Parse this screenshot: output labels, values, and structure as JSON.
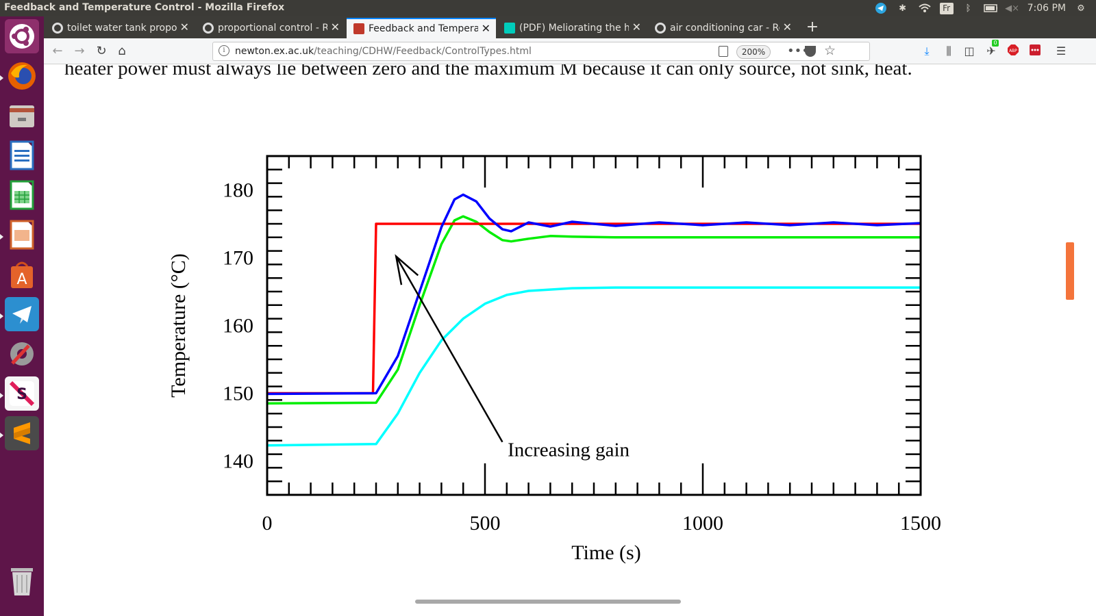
{
  "window": {
    "title": "Feedback and Temperature Control - Mozilla Firefox",
    "clock": "7:06 PM",
    "keyboard_layout": "Fr"
  },
  "tabs": [
    {
      "label": "toilet water tank propor",
      "favicon": "google-icon"
    },
    {
      "label": "proportional control - R",
      "favicon": "google-icon"
    },
    {
      "label": "Feedback and Temperat",
      "favicon": "exeter-crest-icon",
      "active": true
    },
    {
      "label": "(PDF) Meliorating the h",
      "favicon": "researchgate-icon"
    },
    {
      "label": "air conditioning car - Re",
      "favicon": "google-icon"
    }
  ],
  "address_bar": {
    "url_host": "newton.ex.ac.uk",
    "url_path": "/teaching/CDHW/Feedback/ControlTypes.html",
    "zoom": "200%"
  },
  "addon_badge": "0",
  "page": {
    "top_text": "heater power must always lie between zero and the maximum M because it can only source, not sink, heat."
  },
  "chart_data": {
    "type": "line",
    "xlabel": "Time (s)",
    "ylabel": "Temperature (°C)",
    "xlim": [
      0,
      1500
    ],
    "ylim": [
      135,
      185
    ],
    "x_ticks": [
      0,
      500,
      1000,
      1500
    ],
    "y_ticks": [
      140,
      150,
      160,
      170,
      180
    ],
    "annotation": "Increasing gain",
    "colors": {
      "setpoint": "#ff0000",
      "high_gain": "#0000ff",
      "mid_gain": "#00ee00",
      "low_gain": "#00ffff"
    },
    "series": [
      {
        "color": "#ff0000",
        "x": [
          0,
          243,
          250,
          1500
        ],
        "y": [
          150,
          150,
          175,
          175
        ]
      },
      {
        "color": "#0000ff",
        "x": [
          0,
          250,
          300,
          350,
          400,
          430,
          450,
          480,
          510,
          540,
          560,
          600,
          650,
          700,
          800,
          900,
          1000,
          1100,
          1200,
          1300,
          1400,
          1500
        ],
        "y": [
          149.9,
          150,
          155.5,
          165,
          174.5,
          178.6,
          179.3,
          178.3,
          175.8,
          174.2,
          173.9,
          175.2,
          174.6,
          175.3,
          174.7,
          175.2,
          174.8,
          175.2,
          174.8,
          175.2,
          174.8,
          175.1
        ]
      },
      {
        "color": "#00ee00",
        "x": [
          0,
          250,
          300,
          350,
          400,
          430,
          450,
          480,
          510,
          540,
          560,
          600,
          650,
          700,
          800,
          1000,
          1500
        ],
        "y": [
          148.5,
          148.6,
          153.5,
          163,
          172,
          175.5,
          176.1,
          175.3,
          173.8,
          172.6,
          172.4,
          172.8,
          173.2,
          173.1,
          173,
          173,
          173
        ]
      },
      {
        "color": "#00ffff",
        "x": [
          0,
          250,
          300,
          350,
          400,
          450,
          500,
          550,
          600,
          700,
          800,
          900,
          1000,
          1500
        ],
        "y": [
          142.3,
          142.5,
          147,
          153,
          157.8,
          161,
          163.2,
          164.5,
          165.1,
          165.5,
          165.6,
          165.6,
          165.6,
          165.6
        ]
      }
    ]
  }
}
